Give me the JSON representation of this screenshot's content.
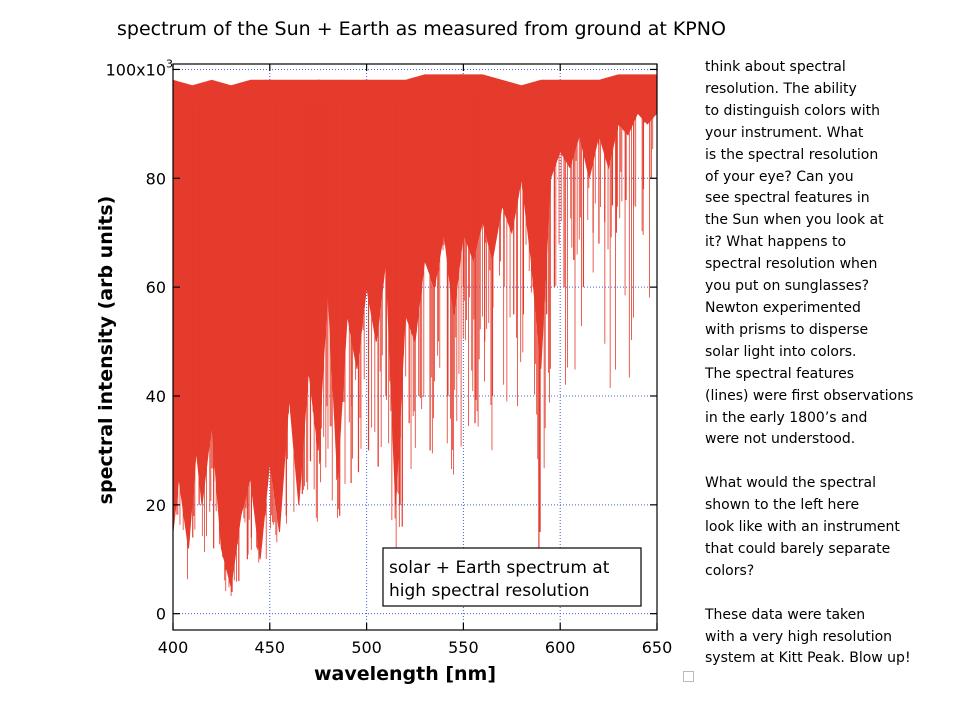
{
  "slide": {
    "title": "spectrum of the Sun + Earth as measured from ground at KPNO"
  },
  "chart_data": {
    "type": "line",
    "xlabel": "wavelength [nm]",
    "ylabel": "spectral intensity (arb units)",
    "xlim": [
      400,
      650
    ],
    "ylim": [
      -3,
      101
    ],
    "x_ticks": [
      400,
      450,
      500,
      550,
      600,
      650
    ],
    "x_tick_labels": [
      "400",
      "450",
      "500",
      "550",
      "600",
      "650"
    ],
    "y_ticks": [
      0,
      20,
      40,
      60,
      80,
      100
    ],
    "y_tick_labels": [
      "0",
      "20",
      "40",
      "60",
      "80",
      "100x10"
    ],
    "y_scale_superscript": "3",
    "legend_lines": [
      "solar + Earth spectrum at",
      "high spectral resolution"
    ],
    "legend_position": "lower-right",
    "grid": "dotted",
    "series_color": "#e53b2c",
    "continuum": [
      [
        400,
        98
      ],
      [
        410,
        97
      ],
      [
        420,
        98
      ],
      [
        430,
        97
      ],
      [
        440,
        98
      ],
      [
        450,
        98
      ],
      [
        460,
        98
      ],
      [
        470,
        98
      ],
      [
        480,
        98
      ],
      [
        490,
        98
      ],
      [
        500,
        98
      ],
      [
        510,
        98
      ],
      [
        520,
        98
      ],
      [
        530,
        99
      ],
      [
        540,
        99
      ],
      [
        550,
        99
      ],
      [
        560,
        99
      ],
      [
        570,
        98
      ],
      [
        580,
        97
      ],
      [
        590,
        98
      ],
      [
        600,
        98
      ],
      [
        610,
        98
      ],
      [
        620,
        98
      ],
      [
        630,
        99
      ],
      [
        640,
        99
      ],
      [
        650,
        99
      ]
    ],
    "dense_floor": [
      [
        400,
        15
      ],
      [
        403,
        25
      ],
      [
        408,
        12
      ],
      [
        412,
        30
      ],
      [
        415,
        20
      ],
      [
        420,
        35
      ],
      [
        425,
        12
      ],
      [
        430,
        5
      ],
      [
        435,
        18
      ],
      [
        440,
        25
      ],
      [
        445,
        10
      ],
      [
        450,
        28
      ],
      [
        455,
        15
      ],
      [
        460,
        40
      ],
      [
        465,
        20
      ],
      [
        470,
        45
      ],
      [
        475,
        30
      ],
      [
        480,
        60
      ],
      [
        485,
        25
      ],
      [
        490,
        55
      ],
      [
        495,
        45
      ],
      [
        500,
        60
      ],
      [
        505,
        50
      ],
      [
        510,
        65
      ],
      [
        515,
        20
      ],
      [
        520,
        55
      ],
      [
        525,
        50
      ],
      [
        530,
        65
      ],
      [
        535,
        60
      ],
      [
        540,
        70
      ],
      [
        545,
        55
      ],
      [
        550,
        70
      ],
      [
        555,
        65
      ],
      [
        560,
        72
      ],
      [
        565,
        65
      ],
      [
        570,
        75
      ],
      [
        575,
        70
      ],
      [
        580,
        80
      ],
      [
        585,
        65
      ],
      [
        590,
        45
      ],
      [
        595,
        80
      ],
      [
        600,
        85
      ],
      [
        605,
        82
      ],
      [
        610,
        88
      ],
      [
        615,
        80
      ],
      [
        620,
        88
      ],
      [
        625,
        82
      ],
      [
        630,
        90
      ],
      [
        635,
        88
      ],
      [
        640,
        92
      ],
      [
        645,
        90
      ],
      [
        650,
        92
      ]
    ],
    "absorption_lines": [
      {
        "x": 410.2,
        "depth": 14
      },
      {
        "x": 413.5,
        "depth": 20
      },
      {
        "x": 421.0,
        "depth": 12
      },
      {
        "x": 427.0,
        "depth": 8
      },
      {
        "x": 430.5,
        "depth": 4
      },
      {
        "x": 434.0,
        "depth": 6
      },
      {
        "x": 438.4,
        "depth": 10
      },
      {
        "x": 440.5,
        "depth": 14
      },
      {
        "x": 443.8,
        "depth": 12
      },
      {
        "x": 448.0,
        "depth": 18
      },
      {
        "x": 453.0,
        "depth": 20
      },
      {
        "x": 458.5,
        "depth": 18
      },
      {
        "x": 466.8,
        "depth": 22
      },
      {
        "x": 471.0,
        "depth": 28
      },
      {
        "x": 476.0,
        "depth": 28
      },
      {
        "x": 486.1,
        "depth": 18
      },
      {
        "x": 492.0,
        "depth": 24
      },
      {
        "x": 495.8,
        "depth": 26
      },
      {
        "x": 501.0,
        "depth": 30
      },
      {
        "x": 506.0,
        "depth": 27
      },
      {
        "x": 510.0,
        "depth": 40
      },
      {
        "x": 516.7,
        "depth": 22
      },
      {
        "x": 517.3,
        "depth": 20
      },
      {
        "x": 518.4,
        "depth": 16
      },
      {
        "x": 522.0,
        "depth": 35
      },
      {
        "x": 527.0,
        "depth": 40
      },
      {
        "x": 532.8,
        "depth": 30
      },
      {
        "x": 537.0,
        "depth": 50
      },
      {
        "x": 542.0,
        "depth": 40
      },
      {
        "x": 545.0,
        "depth": 55
      },
      {
        "x": 550.0,
        "depth": 60
      },
      {
        "x": 556.0,
        "depth": 35
      },
      {
        "x": 561.0,
        "depth": 50
      },
      {
        "x": 565.0,
        "depth": 40
      },
      {
        "x": 571.0,
        "depth": 60
      },
      {
        "x": 576.0,
        "depth": 55
      },
      {
        "x": 581.0,
        "depth": 55
      },
      {
        "x": 586.0,
        "depth": 60
      },
      {
        "x": 589.0,
        "depth": 12
      },
      {
        "x": 589.6,
        "depth": 15
      },
      {
        "x": 593.0,
        "depth": 55
      },
      {
        "x": 597.0,
        "depth": 60
      },
      {
        "x": 602.0,
        "depth": 60
      },
      {
        "x": 607.0,
        "depth": 65
      },
      {
        "x": 612.0,
        "depth": 60
      },
      {
        "x": 617.0,
        "depth": 70
      },
      {
        "x": 620.0,
        "depth": 68
      },
      {
        "x": 623.0,
        "depth": 72
      },
      {
        "x": 627.0,
        "depth": 75
      },
      {
        "x": 629.0,
        "depth": 70
      },
      {
        "x": 634.0,
        "depth": 76
      },
      {
        "x": 638.0,
        "depth": 75
      },
      {
        "x": 643.0,
        "depth": 78
      },
      {
        "x": 647.0,
        "depth": 80
      }
    ]
  },
  "side_text": {
    "paragraph1": [
      "think about spectral",
      "resolution.  The ability",
      "to distinguish colors with",
      "your instrument.  What",
      "is the spectral resolution",
      "of your eye?  Can you",
      "see spectral features in",
      "the Sun when you look at",
      "it?  What happens to",
      "spectral resolution when",
      "you put on sunglasses?",
      "Newton experimented",
      "with prisms to disperse",
      "solar light into colors.",
      "The spectral features",
      "(lines) were first observations",
      "in the early 1800’s and",
      "were not understood."
    ],
    "paragraph2": [
      "What would the spectral",
      "shown to the left here",
      "look like with an  instrument",
      "that could barely separate",
      "colors?"
    ],
    "paragraph3": [
      "These data were taken",
      "with a very high resolution",
      "system at Kitt Peak.  Blow up!"
    ]
  }
}
